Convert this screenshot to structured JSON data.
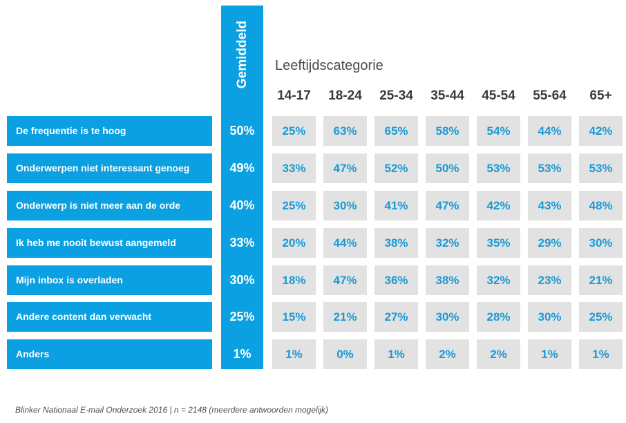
{
  "chart_data": {
    "type": "table",
    "avg_header": "Gemiddeld",
    "age_title": "Leeftijdscategorie",
    "age_groups": [
      "14-17",
      "18-24",
      "25-34",
      "35-44",
      "45-54",
      "55-64",
      "65+"
    ],
    "rows": [
      {
        "label": "De frequentie is te hoog",
        "avg": "50%",
        "values": [
          "25%",
          "63%",
          "65%",
          "58%",
          "54%",
          "44%",
          "42%"
        ]
      },
      {
        "label": "Onderwerpen niet interessant genoeg",
        "avg": "49%",
        "values": [
          "33%",
          "47%",
          "52%",
          "50%",
          "53%",
          "53%",
          "53%"
        ]
      },
      {
        "label": "Onderwerp is niet meer aan de orde",
        "avg": "40%",
        "values": [
          "25%",
          "30%",
          "41%",
          "47%",
          "42%",
          "43%",
          "48%"
        ]
      },
      {
        "label": "Ik heb me nooit bewust aangemeld",
        "avg": "33%",
        "values": [
          "20%",
          "44%",
          "38%",
          "32%",
          "35%",
          "29%",
          "30%"
        ]
      },
      {
        "label": "Mijn inbox is overladen",
        "avg": "30%",
        "values": [
          "18%",
          "47%",
          "36%",
          "38%",
          "32%",
          "23%",
          "21%"
        ]
      },
      {
        "label": "Andere content dan verwacht",
        "avg": "25%",
        "values": [
          "15%",
          "21%",
          "27%",
          "30%",
          "28%",
          "30%",
          "25%"
        ]
      },
      {
        "label": "Anders",
        "avg": "1%",
        "values": [
          "1%",
          "0%",
          "1%",
          "2%",
          "2%",
          "1%",
          "1%"
        ]
      }
    ],
    "footnote": "Blinker Nationaal E-mail Onderzoek 2016 | n = 2148 (meerdere antwoorden mogelijk)"
  }
}
